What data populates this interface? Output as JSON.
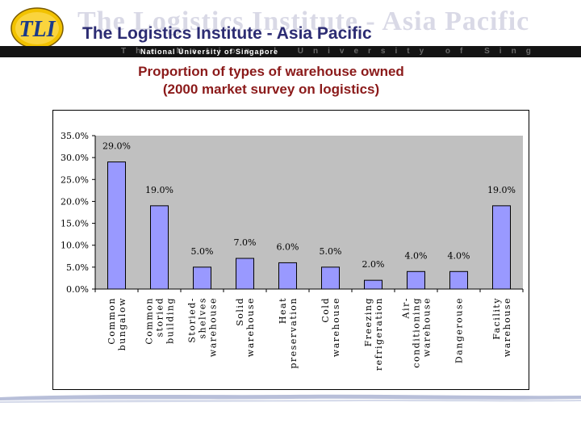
{
  "header": {
    "institute_name": "The Logistics Institute - Asia Pacific",
    "university": "National University of Singapore",
    "watermark_title": "The Logistics Institute - Asia Pacific",
    "watermark_university": "The National University of Singapore",
    "logo_text": "TLI"
  },
  "slide": {
    "title_line1": "Proportion of types of warehouse owned",
    "title_line2": "(2000 market survey on logistics)"
  },
  "colors": {
    "bar_fill": "#9999ff",
    "plot_background": "#c0c0c0",
    "title": "#8b1a1a",
    "institute_text": "#2c2c73"
  },
  "chart_data": {
    "type": "bar",
    "categories": [
      [
        "Common",
        "bungalow"
      ],
      [
        "Common",
        "storied",
        "building"
      ],
      [
        "Storied-",
        "shelves",
        "warehouse"
      ],
      [
        "Solid",
        "warehouse"
      ],
      [
        "Heat",
        "preservation"
      ],
      [
        "Cold",
        "warehouse"
      ],
      [
        "Freezing",
        "refrigeration"
      ],
      [
        "Air-",
        "conditioning",
        "warehouse"
      ],
      [
        "Dangerouse"
      ],
      [
        "Facility",
        "warehouse"
      ]
    ],
    "values": [
      29.0,
      19.0,
      5.0,
      7.0,
      6.0,
      5.0,
      2.0,
      4.0,
      4.0,
      19.0
    ],
    "data_labels": [
      "29.0%",
      "19.0%",
      "5.0%",
      "7.0%",
      "6.0%",
      "5.0%",
      "2.0%",
      "4.0%",
      "4.0%",
      "19.0%"
    ],
    "y_ticks": [
      "0.0%",
      "5.0%",
      "10.0%",
      "15.0%",
      "20.0%",
      "25.0%",
      "30.0%",
      "35.0%"
    ],
    "ylim": [
      0,
      35
    ],
    "title": "",
    "xlabel": "",
    "ylabel": "",
    "grid": false,
    "legend": "none"
  }
}
